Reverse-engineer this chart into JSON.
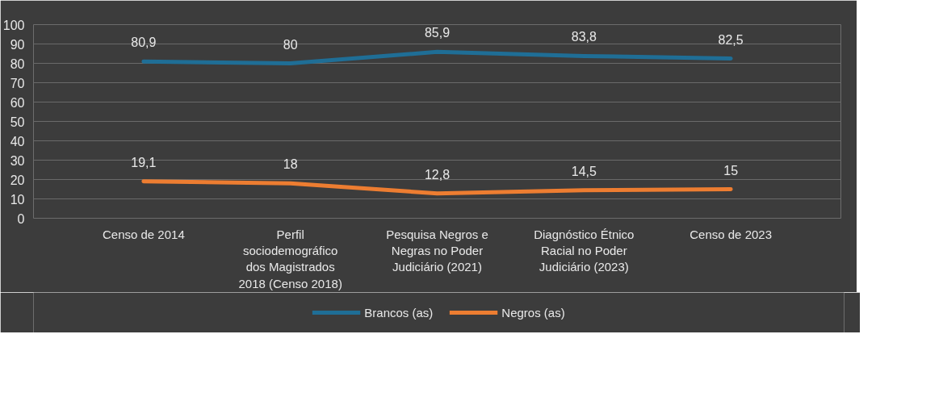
{
  "chart_data": {
    "type": "line",
    "categories": [
      "Censo de 2014",
      "Perfil\nsociodemográfico\ndos Magistrados\n2018 (Censo 2018)",
      "Pesquisa Negros e\nNegras no Poder\nJudiciário (2021)",
      "Diagnóstico Étnico\nRacial no Poder\nJudiciário (2023)",
      "Censo de 2023"
    ],
    "series": [
      {
        "name": "Brancos (as)",
        "color": "#1f6e96",
        "values": [
          80.9,
          80,
          85.9,
          83.8,
          82.5
        ],
        "value_labels": [
          "80,9",
          "80",
          "85,9",
          "83,8",
          "82,5"
        ]
      },
      {
        "name": "Negros (as)",
        "color": "#ed7d31",
        "values": [
          19.1,
          18,
          12.8,
          14.5,
          15
        ],
        "value_labels": [
          "19,1",
          "18",
          "12,8",
          "14,5",
          "15"
        ]
      }
    ],
    "ylim": [
      0,
      100
    ],
    "yticks": [
      0,
      10,
      20,
      30,
      40,
      50,
      60,
      70,
      80,
      90,
      100
    ],
    "grid": "y",
    "legend": "bottom"
  }
}
